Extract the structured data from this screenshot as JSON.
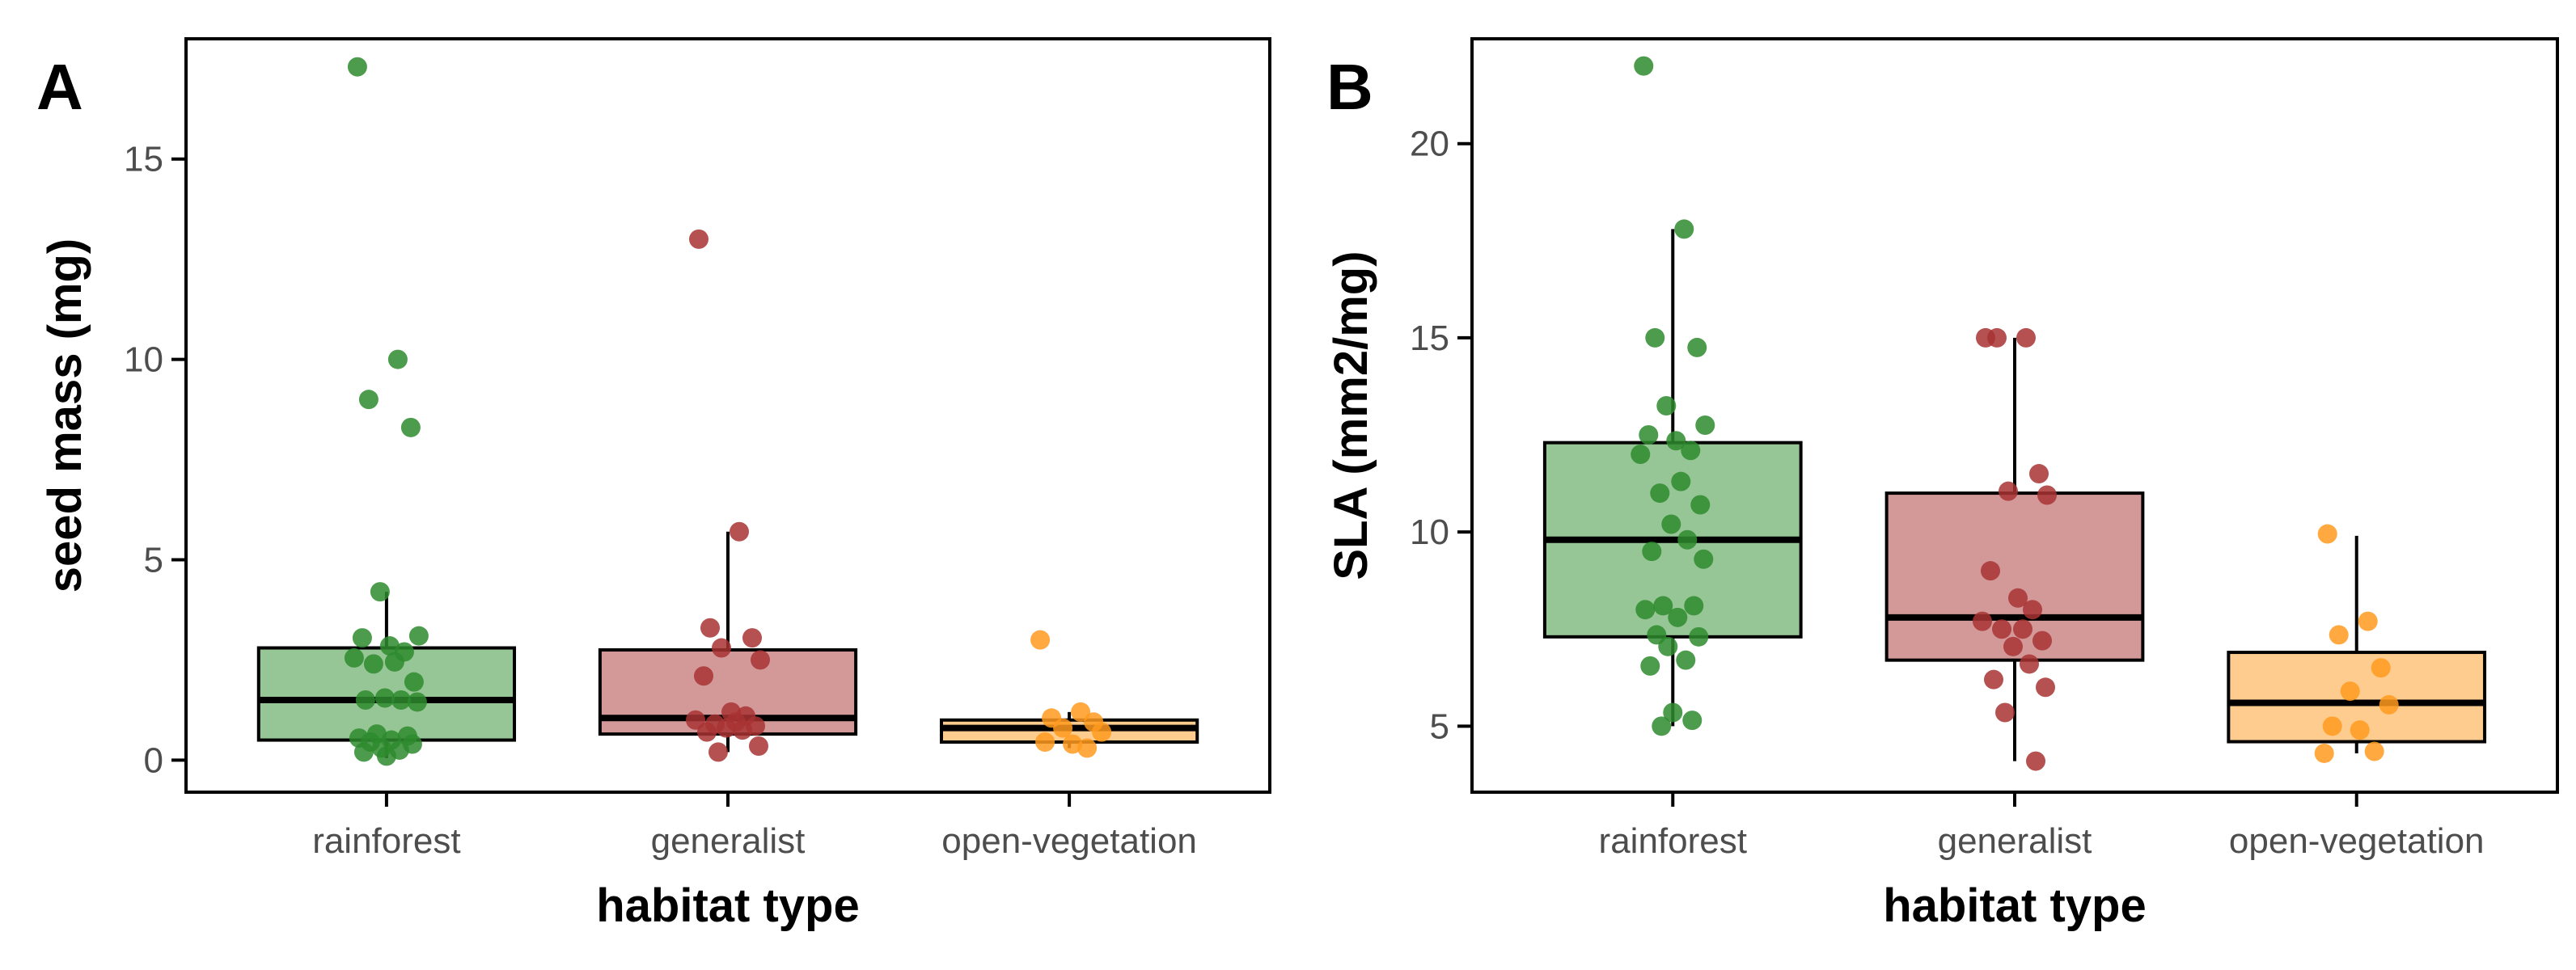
{
  "colors": {
    "rainforest": "#2e8b2e",
    "generalist": "#a83232",
    "open-vegetation": "#ff9a1f"
  },
  "chart_data": [
    {
      "type": "box",
      "panel": "A",
      "xlabel": "habitat type",
      "ylabel": "seed mass (mg)",
      "ylim": [
        -0.8,
        18
      ],
      "yticks": [
        0,
        5,
        10,
        15
      ],
      "categories": [
        "rainforest",
        "generalist",
        "open-vegetation"
      ],
      "boxes": [
        {
          "category": "rainforest",
          "q1": 0.5,
          "median": 1.5,
          "q3": 2.8,
          "whisker_low": 0.05,
          "whisker_high": 4.2
        },
        {
          "category": "generalist",
          "q1": 0.65,
          "median": 1.05,
          "q3": 2.75,
          "whisker_low": 0.2,
          "whisker_high": 5.7
        },
        {
          "category": "open-vegetation",
          "q1": 0.45,
          "median": 0.8,
          "q3": 1.0,
          "whisker_low": 0.3,
          "whisker_high": 1.2
        }
      ],
      "points": [
        {
          "category": "rainforest",
          "values": [
            17.3,
            10.0,
            9.0,
            8.3,
            4.2,
            3.1,
            3.05,
            2.85,
            2.7,
            2.55,
            2.45,
            2.4,
            1.95,
            1.55,
            1.5,
            1.5,
            1.45,
            0.65,
            0.6,
            0.55,
            0.5,
            0.45,
            0.4,
            0.3,
            0.25,
            0.2,
            0.1
          ]
        },
        {
          "category": "generalist",
          "values": [
            13.0,
            5.7,
            3.3,
            3.05,
            2.8,
            2.5,
            2.1,
            1.2,
            1.1,
            1.0,
            0.95,
            0.9,
            0.85,
            0.8,
            0.75,
            0.7,
            0.35,
            0.2
          ]
        },
        {
          "category": "open-vegetation",
          "values": [
            3.0,
            1.2,
            1.05,
            0.95,
            0.8,
            0.7,
            0.45,
            0.4,
            0.3
          ]
        }
      ]
    },
    {
      "type": "box",
      "panel": "B",
      "xlabel": "habitat type",
      "ylabel": "SLA (mm2/mg)",
      "ylim": [
        3.3,
        22.7
      ],
      "yticks": [
        5,
        10,
        15,
        20
      ],
      "categories": [
        "rainforest",
        "generalist",
        "open-vegetation"
      ],
      "boxes": [
        {
          "category": "rainforest",
          "q1": 7.3,
          "median": 9.8,
          "q3": 12.3,
          "whisker_low": 5.0,
          "whisker_high": 17.8
        },
        {
          "category": "generalist",
          "q1": 6.7,
          "median": 7.8,
          "q3": 11.0,
          "whisker_low": 4.1,
          "whisker_high": 15.0
        },
        {
          "category": "open-vegetation",
          "q1": 4.6,
          "median": 5.6,
          "q3": 6.9,
          "whisker_low": 4.3,
          "whisker_high": 9.9
        }
      ],
      "points": [
        {
          "category": "rainforest",
          "values": [
            22.0,
            17.8,
            15.0,
            14.75,
            13.25,
            12.75,
            12.5,
            12.35,
            12.1,
            12.0,
            11.3,
            11.0,
            10.7,
            10.2,
            9.8,
            9.5,
            9.3,
            8.1,
            8.1,
            8.0,
            7.8,
            7.35,
            7.3,
            7.05,
            6.7,
            6.55,
            5.35,
            5.15,
            5.0
          ]
        },
        {
          "category": "generalist",
          "values": [
            15.0,
            15.0,
            15.0,
            11.5,
            11.05,
            10.95,
            9.0,
            8.3,
            8.0,
            7.7,
            7.5,
            7.5,
            7.2,
            7.05,
            6.6,
            6.2,
            6.0,
            5.35,
            4.1
          ]
        },
        {
          "category": "open-vegetation",
          "values": [
            9.95,
            7.7,
            7.35,
            6.5,
            5.9,
            5.55,
            5.0,
            4.9,
            4.35,
            4.3
          ]
        }
      ]
    }
  ]
}
